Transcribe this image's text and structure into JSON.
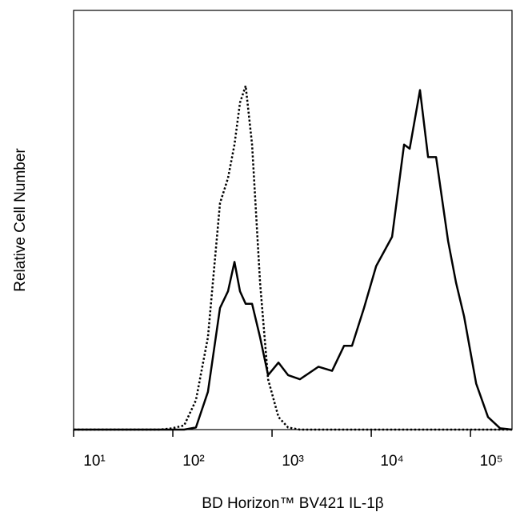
{
  "chart_data": {
    "type": "line",
    "x_label": "BD Horizon™ BV421 IL-1β",
    "y_label": "Relative Cell Number",
    "x_log": true,
    "xlim": [
      10,
      262000
    ],
    "ylim": [
      0,
      100
    ],
    "xticks": [
      {
        "value": 10,
        "label": "10¹"
      },
      {
        "value": 100,
        "label": "10²"
      },
      {
        "value": 1000,
        "label": "10³"
      },
      {
        "value": 10000,
        "label": "10⁴"
      },
      {
        "value": 100000,
        "label": "10⁵"
      }
    ],
    "x": [
      10,
      74,
      98,
      130,
      171,
      226,
      299,
      360,
      418,
      475,
      542,
      629,
      757,
      912,
      1160,
      1450,
      1910,
      2940,
      4030,
      5320,
      6400,
      8450,
      11200,
      16200,
      21400,
      24400,
      31000,
      37400,
      45000,
      59400,
      71600,
      86100,
      114000,
      150000,
      199000,
      262000
    ],
    "series": [
      {
        "color": "#000000",
        "dash": "dotted",
        "values": [
          0,
          0,
          0.3,
          1,
          7,
          22,
          54,
          60,
          68,
          78,
          82,
          68,
          35,
          12,
          3,
          0.5,
          0,
          0,
          0,
          0,
          0,
          0,
          0,
          0,
          0,
          0,
          0,
          0,
          0,
          0,
          0,
          0,
          0,
          0,
          0,
          0
        ]
      },
      {
        "color": "#000000",
        "dash": "solid",
        "values": [
          0,
          0,
          0,
          0,
          0.5,
          9,
          29,
          33,
          40,
          33,
          30,
          30,
          22,
          13,
          16,
          13,
          12,
          15,
          14,
          20,
          20,
          29,
          39,
          46,
          68,
          67,
          81,
          65,
          65,
          45,
          35,
          27,
          11,
          3,
          0.3,
          0
        ]
      }
    ]
  }
}
